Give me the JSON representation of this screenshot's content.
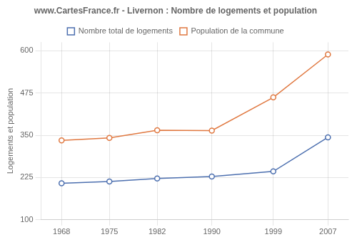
{
  "chart_data": {
    "type": "line",
    "title": "www.CartesFrance.fr - Livernon : Nombre de logements et population",
    "y_label": "Logements et population",
    "x": [
      1968,
      1975,
      1982,
      1990,
      1999,
      2007
    ],
    "series": [
      {
        "name": "Population de la commune",
        "color": "#e07840",
        "marker": "circle",
        "values": [
          335,
          342,
          365,
          364,
          462,
          589
        ]
      },
      {
        "name": "Nombre total de logements",
        "color": "#4c6faf",
        "marker": "circle",
        "values": [
          208,
          213,
          222,
          228,
          243,
          344
        ]
      }
    ],
    "xlim": [
      1965,
      2010
    ],
    "xticks": [
      1968,
      1975,
      1982,
      1990,
      1999,
      2007
    ],
    "ylim": [
      100,
      625
    ],
    "yticks": [
      100,
      225,
      350,
      475,
      600
    ],
    "grid": true,
    "legend": "top"
  }
}
